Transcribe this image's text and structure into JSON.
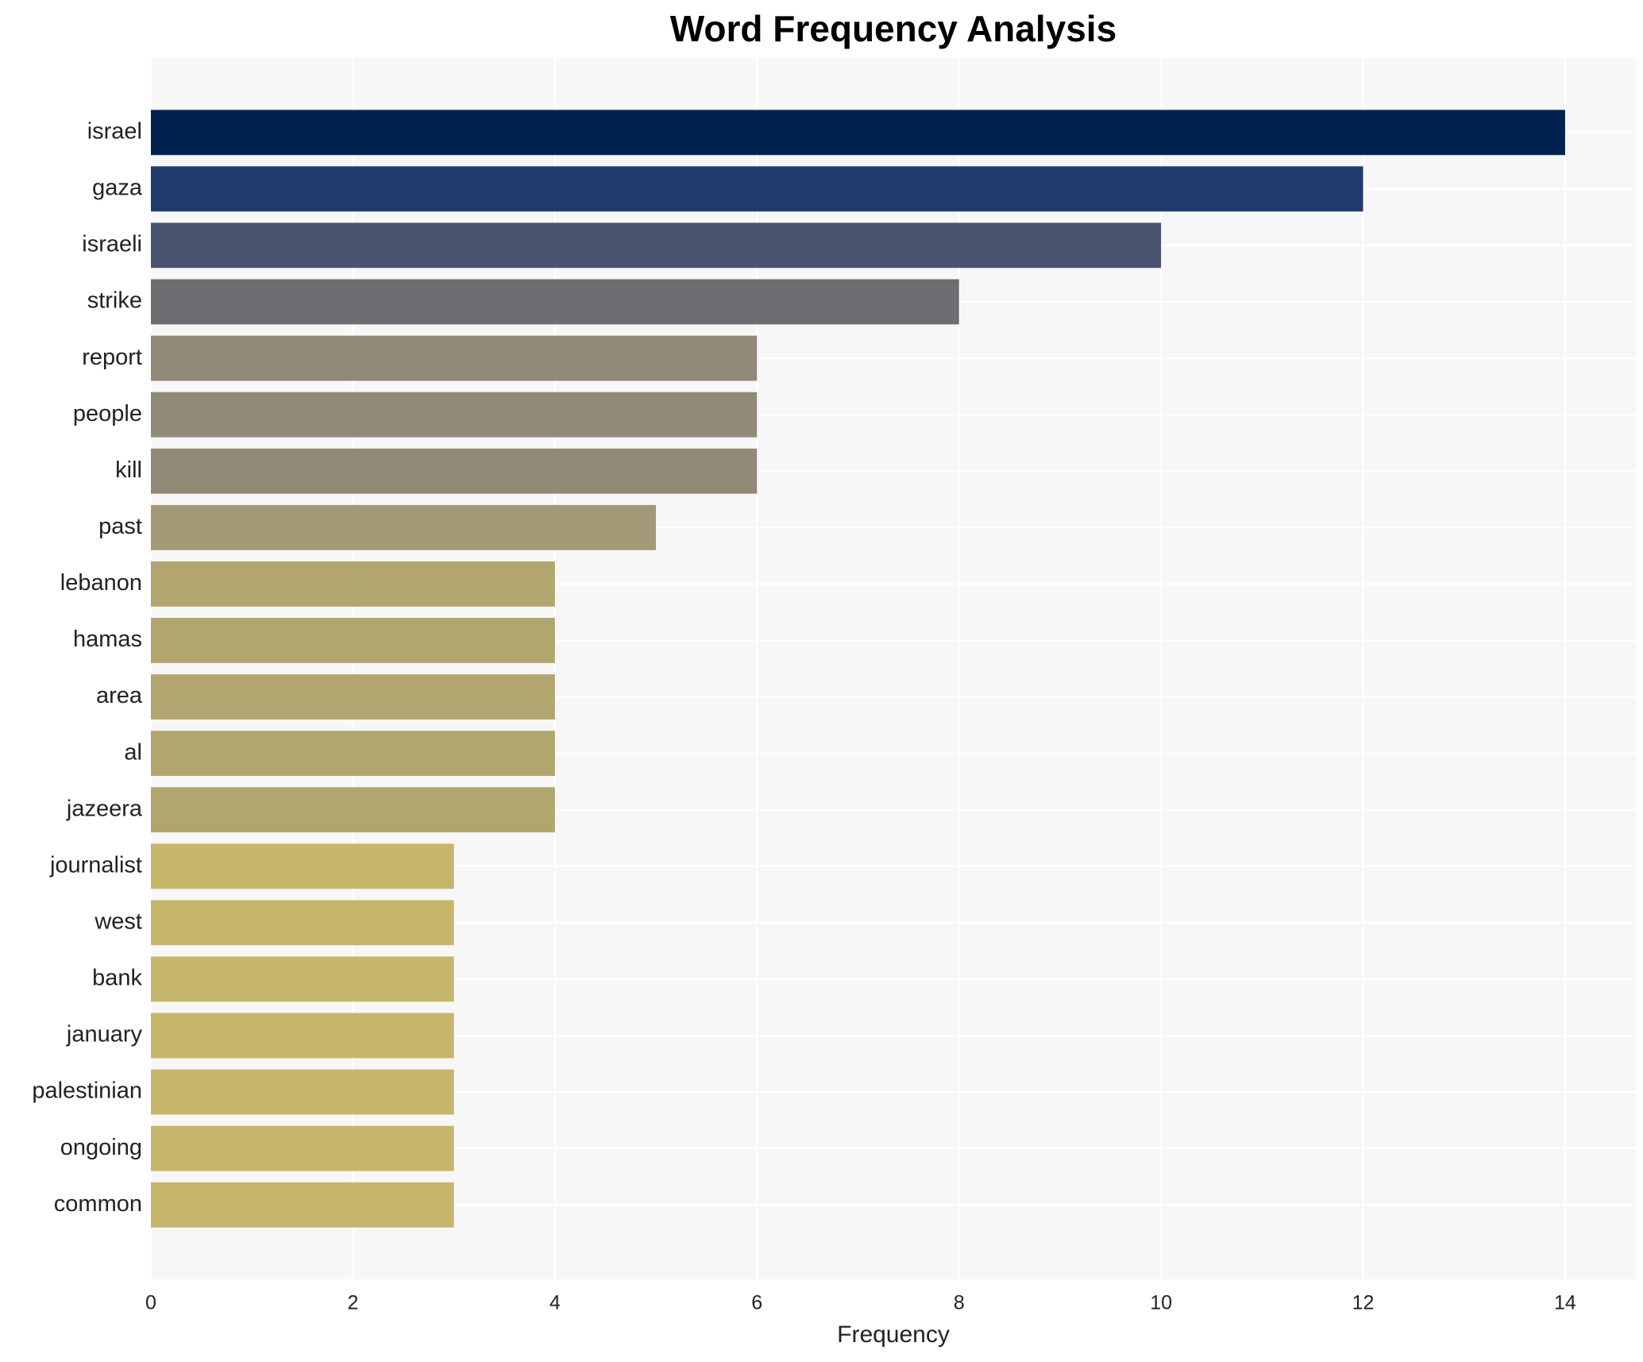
{
  "chart_data": {
    "type": "bar",
    "orientation": "horizontal",
    "title": "Word Frequency Analysis",
    "x_label": "Frequency",
    "categories": [
      "israel",
      "gaza",
      "israeli",
      "strike",
      "report",
      "people",
      "kill",
      "past",
      "lebanon",
      "hamas",
      "area",
      "al",
      "jazeera",
      "journalist",
      "west",
      "bank",
      "january",
      "palestinian",
      "ongoing",
      "common"
    ],
    "values": [
      14,
      12,
      10,
      8,
      6,
      6,
      6,
      5,
      4,
      4,
      4,
      4,
      4,
      3,
      3,
      3,
      3,
      3,
      3,
      3
    ],
    "colors": [
      "#00224e",
      "#203a6c",
      "#4b546e",
      "#6c6e72",
      "#918a79",
      "#918a79",
      "#918a79",
      "#a29a77",
      "#b1a66f",
      "#b1a66f",
      "#b1a66f",
      "#b1a66f",
      "#b1a66f",
      "#c5b66c",
      "#c5b66c",
      "#c5b66c",
      "#c5b66c",
      "#c5b66c",
      "#c5b66c",
      "#c5b66c"
    ],
    "xlim": [
      0,
      14.7
    ],
    "xticks": [
      0,
      2,
      4,
      6,
      8,
      10,
      12,
      14
    ],
    "grid": true
  }
}
